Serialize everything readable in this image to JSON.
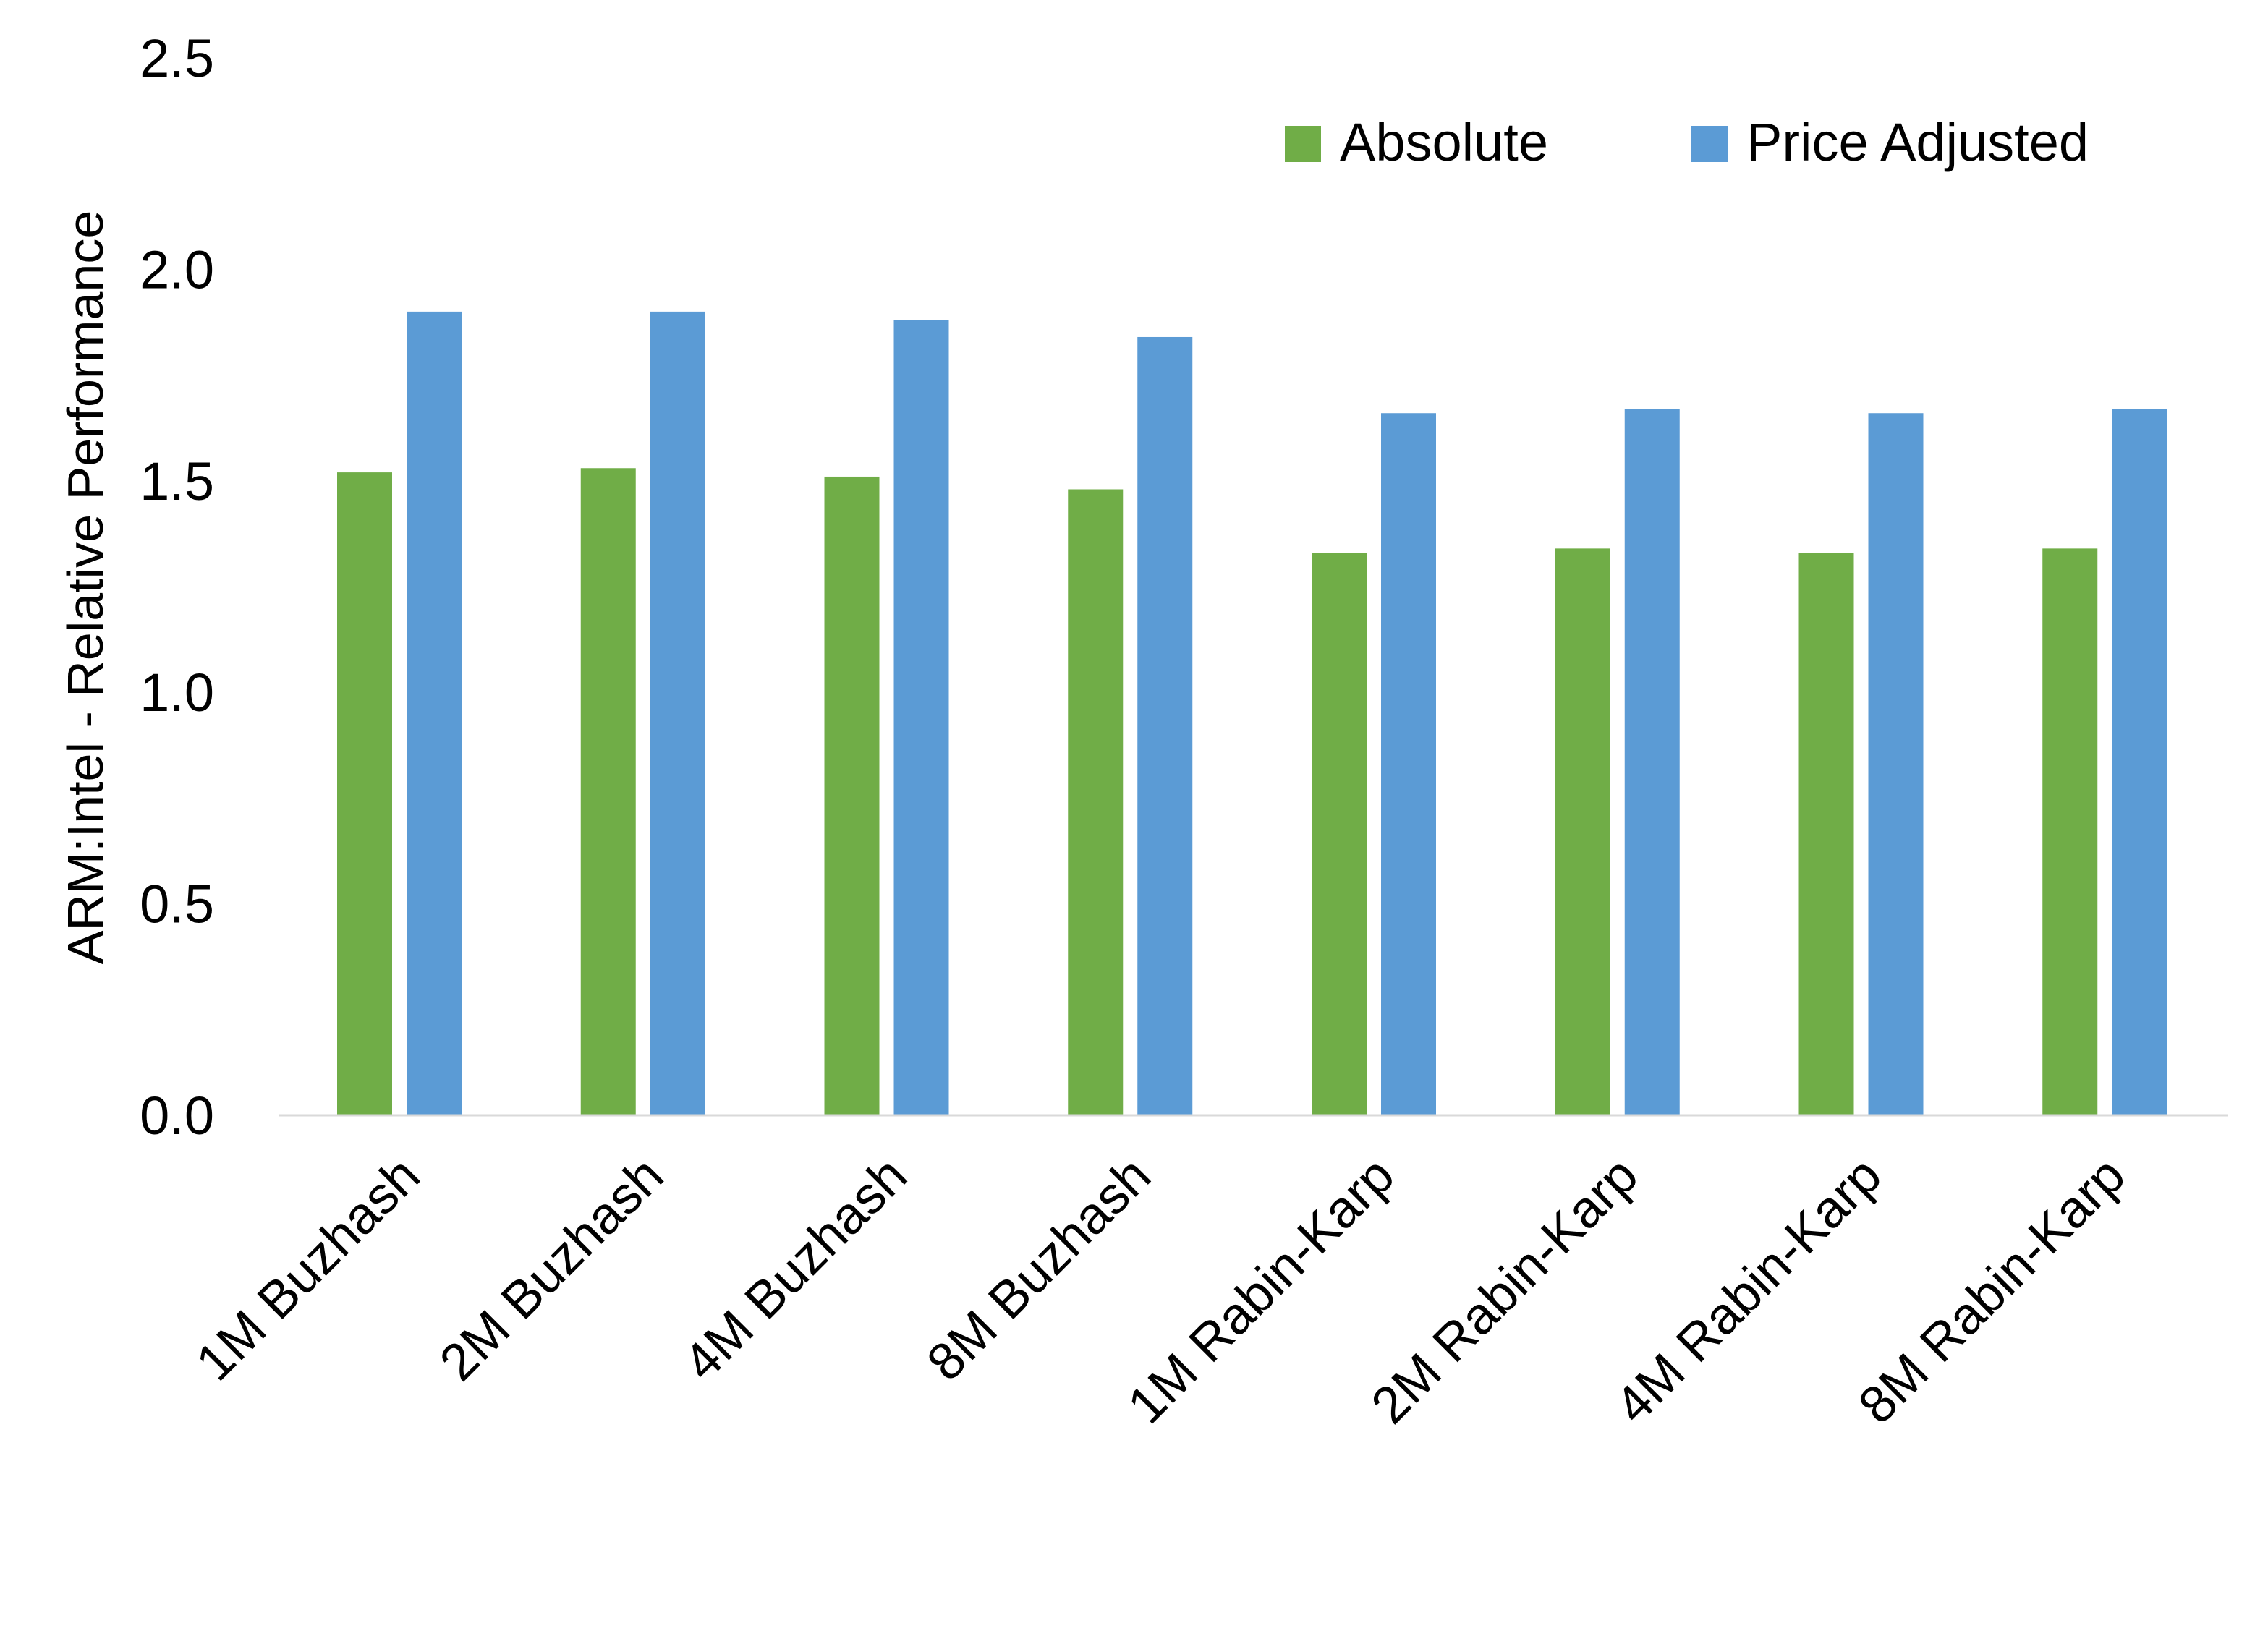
{
  "chart_data": {
    "type": "bar",
    "title": "",
    "xlabel": "",
    "ylabel": "ARM:Intel - Relative Performance",
    "ylim": [
      0,
      2.5
    ],
    "yticks": [
      "0.0",
      "0.5",
      "1.0",
      "1.5",
      "2.0",
      "2.5"
    ],
    "grid": false,
    "legend_position": "top-right",
    "categories": [
      "1M Buzhash",
      "2M Buzhash",
      "4M Buzhash",
      "8M Buzhash",
      "1M Rabin-Karp",
      "2M Rabin-Karp",
      "4M Rabin-Karp",
      "8M Rabin-Karp"
    ],
    "series": [
      {
        "name": "Absolute",
        "color": "#70AD47",
        "values": [
          1.52,
          1.53,
          1.51,
          1.48,
          1.33,
          1.34,
          1.33,
          1.34
        ]
      },
      {
        "name": "Price Adjusted",
        "color": "#5B9BD5",
        "values": [
          1.9,
          1.9,
          1.88,
          1.84,
          1.66,
          1.67,
          1.66,
          1.67
        ]
      }
    ]
  }
}
